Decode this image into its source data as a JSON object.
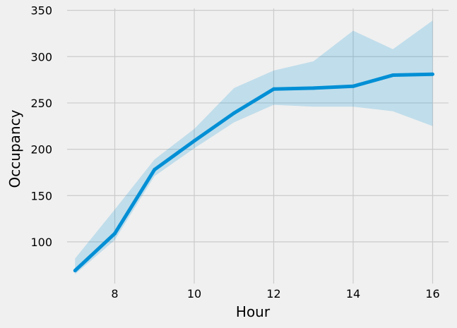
{
  "chart_data": {
    "type": "line",
    "xlabel": "Hour",
    "ylabel": "Occupancy",
    "xlim": [
      6.8,
      16.4
    ],
    "ylim": [
      55,
      352
    ],
    "x_ticks": [
      8,
      10,
      12,
      14,
      16
    ],
    "y_ticks": [
      100,
      150,
      200,
      250,
      300,
      350
    ],
    "grid": true,
    "series": [
      {
        "x": [
          7,
          8,
          9,
          10,
          11,
          12,
          13,
          14,
          15,
          16
        ],
        "y": [
          69,
          109,
          178,
          209,
          239,
          265,
          266,
          268,
          280,
          281
        ],
        "ci_lower": [
          65,
          102,
          171,
          201,
          229,
          248,
          246,
          246,
          241,
          225
        ],
        "ci_upper": [
          82,
          135,
          189,
          222,
          266,
          285,
          295,
          328,
          308,
          339
        ]
      }
    ],
    "colors": {
      "line": "#008fd5",
      "band": "#008fd5",
      "background": "#f0f0f0",
      "grid": "#cbcbcb"
    }
  }
}
